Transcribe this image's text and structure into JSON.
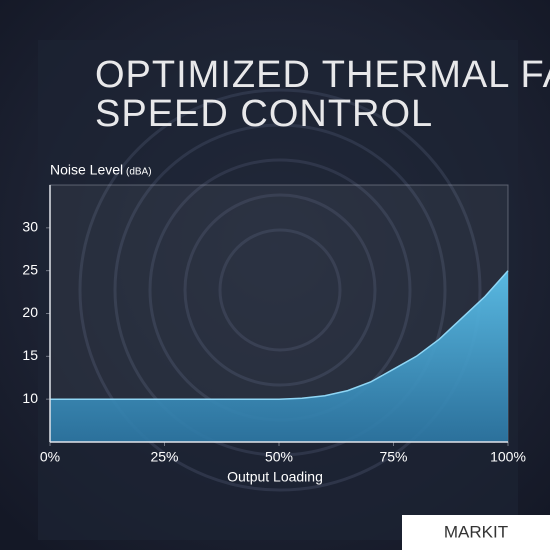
{
  "chart_data": {
    "type": "area",
    "title": [
      "OPTIMIZED THERMAL FAN",
      "SPEED CONTROL"
    ],
    "y_label": "Noise Level",
    "y_unit": "(dBA)",
    "x_label": "Output Loading",
    "x": [
      0,
      10,
      20,
      30,
      40,
      50,
      55,
      60,
      65,
      70,
      75,
      80,
      85,
      90,
      95,
      100
    ],
    "values": [
      10,
      10,
      10,
      10,
      10,
      10,
      10.1,
      10.4,
      11,
      12,
      13.5,
      15,
      17,
      19.5,
      22,
      25
    ],
    "color": "#4aa6d4",
    "line_color": "#8fd6f5",
    "xlim": [
      0,
      100
    ],
    "xticks": [
      {
        "value": 0,
        "label": "0%"
      },
      {
        "value": 25,
        "label": "25%"
      },
      {
        "value": 50,
        "label": "50%"
      },
      {
        "value": 75,
        "label": "75%"
      },
      {
        "value": 100,
        "label": "100%"
      }
    ],
    "ylim": [
      5,
      35
    ],
    "yticks": [
      10,
      15,
      20,
      25,
      30
    ],
    "grid": false,
    "watermark": "MARKIT"
  }
}
